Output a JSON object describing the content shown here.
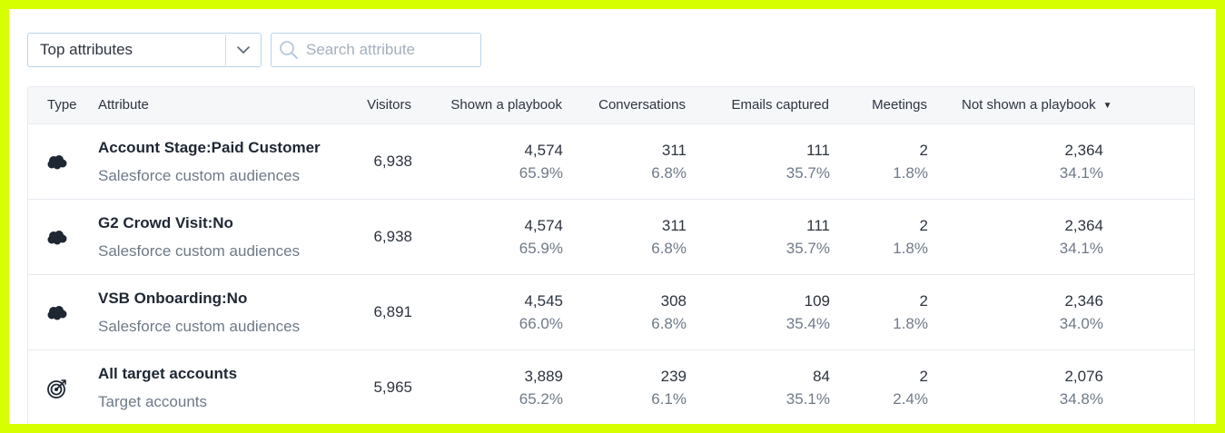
{
  "toolbar": {
    "dropdown_value": "Top attributes",
    "search_placeholder": "Search attribute"
  },
  "table": {
    "headers": {
      "type": "Type",
      "attribute": "Attribute",
      "visitors": "Visitors",
      "shown": "Shown a playbook",
      "conversations": "Conversations",
      "emails": "Emails captured",
      "meetings": "Meetings",
      "not_shown": "Not shown a playbook"
    },
    "rows": [
      {
        "icon": "salesforce-cloud-icon",
        "name": "Account Stage:Paid Customer",
        "source": "Salesforce custom audiences",
        "visitors": "6,938",
        "shown": "4,574",
        "shown_pct": "65.9%",
        "conversations": "311",
        "conversations_pct": "6.8%",
        "emails": "111",
        "emails_pct": "35.7%",
        "meetings": "2",
        "meetings_pct": "1.8%",
        "not_shown": "2,364",
        "not_shown_pct": "34.1%"
      },
      {
        "icon": "salesforce-cloud-icon",
        "name": "G2 Crowd Visit:No",
        "source": "Salesforce custom audiences",
        "visitors": "6,938",
        "shown": "4,574",
        "shown_pct": "65.9%",
        "conversations": "311",
        "conversations_pct": "6.8%",
        "emails": "111",
        "emails_pct": "35.7%",
        "meetings": "2",
        "meetings_pct": "1.8%",
        "not_shown": "2,364",
        "not_shown_pct": "34.1%"
      },
      {
        "icon": "salesforce-cloud-icon",
        "name": "VSB Onboarding:No",
        "source": "Salesforce custom audiences",
        "visitors": "6,891",
        "shown": "4,545",
        "shown_pct": "66.0%",
        "conversations": "308",
        "conversations_pct": "6.8%",
        "emails": "109",
        "emails_pct": "35.4%",
        "meetings": "2",
        "meetings_pct": "1.8%",
        "not_shown": "2,346",
        "not_shown_pct": "34.0%"
      },
      {
        "icon": "target-icon",
        "name": "All target accounts",
        "source": "Target accounts",
        "visitors": "5,965",
        "shown": "3,889",
        "shown_pct": "65.2%",
        "conversations": "239",
        "conversations_pct": "6.1%",
        "emails": "84",
        "emails_pct": "35.1%",
        "meetings": "2",
        "meetings_pct": "2.4%",
        "not_shown": "2,076",
        "not_shown_pct": "34.8%"
      }
    ]
  }
}
